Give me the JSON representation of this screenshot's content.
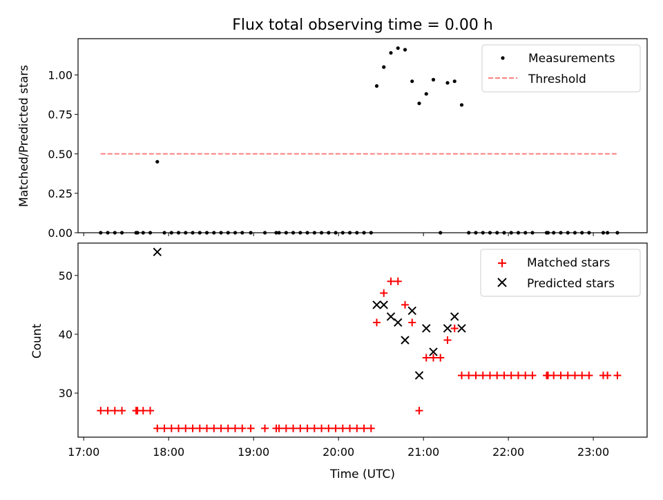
{
  "chart_data": [
    {
      "type": "scatter",
      "title": "Flux total observing time = 0.00 h",
      "xlabel": "",
      "ylabel": "Matched/Predicted stars",
      "xlim": [
        "16:56",
        "23:38"
      ],
      "ylim": [
        0,
        1.23
      ],
      "x_ticks": [
        "17:00",
        "18:00",
        "19:00",
        "20:00",
        "21:00",
        "22:00",
        "23:00"
      ],
      "y_ticks": [
        0.0,
        0.25,
        0.5,
        0.75,
        1.0
      ],
      "y_tick_labels": [
        "0.00",
        "0.25",
        "0.50",
        "0.75",
        "1.00"
      ],
      "legend_position": "upper right",
      "series": [
        {
          "name": "Measurements",
          "marker": "dot",
          "color": "#000000",
          "points": [
            [
              "17:12",
              0
            ],
            [
              "17:17",
              0
            ],
            [
              "17:22",
              0
            ],
            [
              "17:27",
              0
            ],
            [
              "17:37",
              0
            ],
            [
              "17:38",
              0
            ],
            [
              "17:42",
              0
            ],
            [
              "17:47",
              0
            ],
            [
              "17:52",
              0.45
            ],
            [
              "17:57",
              0
            ],
            [
              "18:02",
              0
            ],
            [
              "18:07",
              0
            ],
            [
              "18:12",
              0
            ],
            [
              "18:17",
              0
            ],
            [
              "18:22",
              0
            ],
            [
              "18:27",
              0
            ],
            [
              "18:32",
              0
            ],
            [
              "18:37",
              0
            ],
            [
              "18:42",
              0
            ],
            [
              "18:47",
              0
            ],
            [
              "18:52",
              0
            ],
            [
              "18:58",
              0
            ],
            [
              "19:08",
              0
            ],
            [
              "19:16",
              0
            ],
            [
              "19:18",
              0
            ],
            [
              "19:23",
              0
            ],
            [
              "19:28",
              0
            ],
            [
              "19:33",
              0
            ],
            [
              "19:38",
              0
            ],
            [
              "19:43",
              0
            ],
            [
              "19:48",
              0
            ],
            [
              "19:53",
              0
            ],
            [
              "19:58",
              0
            ],
            [
              "20:03",
              0
            ],
            [
              "20:08",
              0
            ],
            [
              "20:13",
              0
            ],
            [
              "20:18",
              0
            ],
            [
              "20:23",
              0
            ],
            [
              "20:27",
              0.93
            ],
            [
              "20:32",
              1.05
            ],
            [
              "20:37",
              1.14
            ],
            [
              "20:42",
              1.17
            ],
            [
              "20:47",
              1.16
            ],
            [
              "20:52",
              0.96
            ],
            [
              "20:57",
              0.82
            ],
            [
              "21:02",
              0.88
            ],
            [
              "21:07",
              0.97
            ],
            [
              "21:12",
              0
            ],
            [
              "21:17",
              0.95
            ],
            [
              "21:22",
              0.96
            ],
            [
              "21:27",
              0.81
            ],
            [
              "21:32",
              0
            ],
            [
              "21:37",
              0
            ],
            [
              "21:42",
              0
            ],
            [
              "21:47",
              0
            ],
            [
              "21:52",
              0
            ],
            [
              "21:57",
              0
            ],
            [
              "22:02",
              0
            ],
            [
              "22:07",
              0
            ],
            [
              "22:12",
              0
            ],
            [
              "22:17",
              0
            ],
            [
              "22:27",
              0
            ],
            [
              "22:28",
              0
            ],
            [
              "22:32",
              0
            ],
            [
              "22:37",
              0
            ],
            [
              "22:42",
              0
            ],
            [
              "22:47",
              0
            ],
            [
              "22:52",
              0
            ],
            [
              "22:57",
              0
            ],
            [
              "23:07",
              0
            ],
            [
              "23:10",
              0
            ],
            [
              "23:17",
              0
            ]
          ]
        },
        {
          "name": "Threshold",
          "line_style": "dashed",
          "color": "#ff8080",
          "points": [
            [
              "17:12",
              0.5
            ],
            [
              "23:17",
              0.5
            ]
          ]
        }
      ]
    },
    {
      "type": "scatter",
      "title": "",
      "xlabel": "Time (UTC)",
      "ylabel": "Count",
      "xlim": [
        "16:56",
        "23:38"
      ],
      "ylim": [
        22.5,
        55.5
      ],
      "x_ticks": [
        "17:00",
        "18:00",
        "19:00",
        "20:00",
        "21:00",
        "22:00",
        "23:00"
      ],
      "x_tick_labels": [
        "17:00",
        "18:00",
        "19:00",
        "20:00",
        "21:00",
        "22:00",
        "23:00"
      ],
      "y_ticks": [
        30,
        40,
        50
      ],
      "y_tick_labels": [
        "30",
        "40",
        "50"
      ],
      "legend_position": "upper right",
      "series": [
        {
          "name": "Matched stars",
          "marker": "plus",
          "color": "#ff0000",
          "points": [
            [
              "17:12",
              27
            ],
            [
              "17:17",
              27
            ],
            [
              "17:22",
              27
            ],
            [
              "17:27",
              27
            ],
            [
              "17:37",
              27
            ],
            [
              "17:38",
              27
            ],
            [
              "17:42",
              27
            ],
            [
              "17:47",
              27
            ],
            [
              "17:52",
              24
            ],
            [
              "17:57",
              24
            ],
            [
              "18:02",
              24
            ],
            [
              "18:07",
              24
            ],
            [
              "18:12",
              24
            ],
            [
              "18:17",
              24
            ],
            [
              "18:22",
              24
            ],
            [
              "18:27",
              24
            ],
            [
              "18:32",
              24
            ],
            [
              "18:37",
              24
            ],
            [
              "18:42",
              24
            ],
            [
              "18:47",
              24
            ],
            [
              "18:52",
              24
            ],
            [
              "18:58",
              24
            ],
            [
              "19:08",
              24
            ],
            [
              "19:16",
              24
            ],
            [
              "19:18",
              24
            ],
            [
              "19:23",
              24
            ],
            [
              "19:28",
              24
            ],
            [
              "19:33",
              24
            ],
            [
              "19:38",
              24
            ],
            [
              "19:43",
              24
            ],
            [
              "19:48",
              24
            ],
            [
              "19:53",
              24
            ],
            [
              "19:58",
              24
            ],
            [
              "20:03",
              24
            ],
            [
              "20:08",
              24
            ],
            [
              "20:13",
              24
            ],
            [
              "20:18",
              24
            ],
            [
              "20:23",
              24
            ],
            [
              "20:27",
              42
            ],
            [
              "20:32",
              47
            ],
            [
              "20:37",
              49
            ],
            [
              "20:42",
              49
            ],
            [
              "20:47",
              45
            ],
            [
              "20:52",
              42
            ],
            [
              "20:57",
              27
            ],
            [
              "21:02",
              36
            ],
            [
              "21:07",
              36
            ],
            [
              "21:12",
              36
            ],
            [
              "21:17",
              39
            ],
            [
              "21:22",
              41
            ],
            [
              "21:27",
              33
            ],
            [
              "21:32",
              33
            ],
            [
              "21:37",
              33
            ],
            [
              "21:42",
              33
            ],
            [
              "21:47",
              33
            ],
            [
              "21:52",
              33
            ],
            [
              "21:57",
              33
            ],
            [
              "22:02",
              33
            ],
            [
              "22:07",
              33
            ],
            [
              "22:12",
              33
            ],
            [
              "22:17",
              33
            ],
            [
              "22:27",
              33
            ],
            [
              "22:28",
              33
            ],
            [
              "22:32",
              33
            ],
            [
              "22:37",
              33
            ],
            [
              "22:42",
              33
            ],
            [
              "22:47",
              33
            ],
            [
              "22:52",
              33
            ],
            [
              "22:57",
              33
            ],
            [
              "23:07",
              33
            ],
            [
              "23:10",
              33
            ],
            [
              "23:17",
              33
            ]
          ]
        },
        {
          "name": "Predicted stars",
          "marker": "x",
          "color": "#000000",
          "points": [
            [
              "17:52",
              54
            ],
            [
              "20:27",
              45
            ],
            [
              "20:32",
              45
            ],
            [
              "20:37",
              43
            ],
            [
              "20:42",
              42
            ],
            [
              "20:47",
              39
            ],
            [
              "20:52",
              44
            ],
            [
              "20:57",
              33
            ],
            [
              "21:02",
              41
            ],
            [
              "21:07",
              37
            ],
            [
              "21:17",
              41
            ],
            [
              "21:22",
              43
            ],
            [
              "21:27",
              41
            ]
          ]
        }
      ]
    }
  ]
}
